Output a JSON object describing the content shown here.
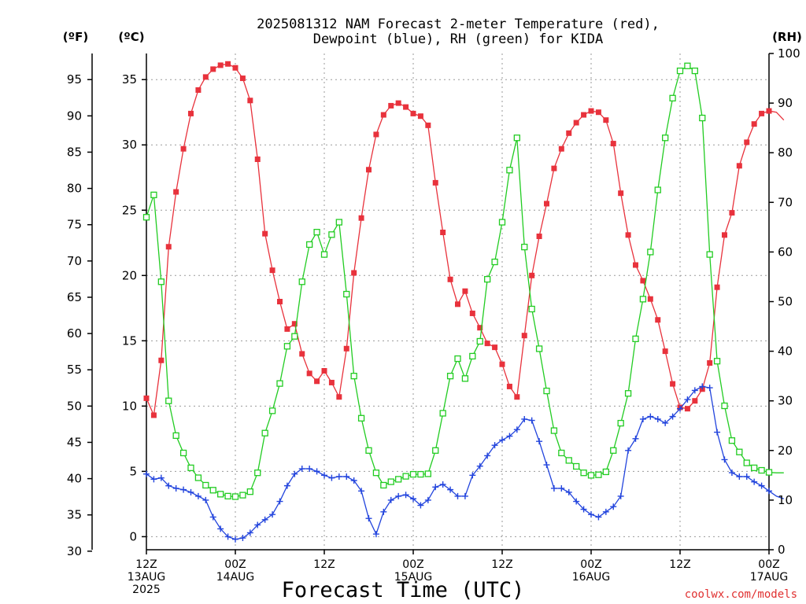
{
  "chart_data": {
    "type": "line",
    "title": "2025081312 NAM Forecast 2-meter Temperature (red),",
    "subtitle": "Dewpoint (blue), RH (green) for KIDA",
    "xlabel": "Forecast Time (UTC)",
    "y_left_outer_unit": "(ºF)",
    "y_left_inner_unit": "(ºC)",
    "y_right_unit": "(RH)",
    "credit": "coolwx.com/models",
    "x_hours_range": [
      0,
      84
    ],
    "y_c_range": [
      -1,
      37
    ],
    "y_f_ticks": [
      30,
      35,
      40,
      45,
      50,
      55,
      60,
      65,
      70,
      75,
      80,
      85,
      90,
      95
    ],
    "y_c_ticks": [
      0,
      5,
      10,
      15,
      20,
      25,
      30,
      35
    ],
    "y_rh_range": [
      0,
      100
    ],
    "y_rh_ticks": [
      0,
      10,
      20,
      30,
      40,
      50,
      60,
      70,
      80,
      90,
      100
    ],
    "x_ticks": [
      {
        "hour": 0,
        "lines": [
          "12Z",
          "13AUG",
          "2025"
        ]
      },
      {
        "hour": 12,
        "lines": [
          "00Z",
          "14AUG"
        ]
      },
      {
        "hour": 24,
        "lines": [
          "12Z"
        ]
      },
      {
        "hour": 36,
        "lines": [
          "00Z",
          "15AUG"
        ]
      },
      {
        "hour": 48,
        "lines": [
          "12Z"
        ]
      },
      {
        "hour": 60,
        "lines": [
          "00Z",
          "16AUG"
        ]
      },
      {
        "hour": 72,
        "lines": [
          "12Z"
        ]
      },
      {
        "hour": 84,
        "lines": [
          "00Z",
          "17AUG"
        ]
      }
    ],
    "grid": true,
    "series": [
      {
        "name": "Temperature",
        "unit": "C",
        "color": "#e8323c",
        "marker": "filled-square",
        "points": [
          [
            0,
            10.6
          ],
          [
            1,
            9.3
          ],
          [
            2,
            13.5
          ],
          [
            3,
            22.2
          ],
          [
            4,
            26.4
          ],
          [
            5,
            29.7
          ],
          [
            6,
            32.4
          ],
          [
            7,
            34.2
          ],
          [
            8,
            35.2
          ],
          [
            9,
            35.8
          ],
          [
            10,
            36.1
          ],
          [
            11,
            36.2
          ],
          [
            12,
            35.9
          ],
          [
            13,
            35.1
          ],
          [
            14,
            33.4
          ],
          [
            15,
            28.9
          ],
          [
            16,
            23.2
          ],
          [
            17,
            20.4
          ],
          [
            18,
            18.0
          ],
          [
            19,
            15.9
          ],
          [
            20,
            16.3
          ],
          [
            21,
            14.0
          ],
          [
            22,
            12.5
          ],
          [
            23,
            11.9
          ],
          [
            24,
            12.7
          ],
          [
            25,
            11.8
          ],
          [
            26,
            10.7
          ],
          [
            27,
            14.4
          ],
          [
            28,
            20.2
          ],
          [
            29,
            24.4
          ],
          [
            30,
            28.1
          ],
          [
            31,
            30.8
          ],
          [
            32,
            32.3
          ],
          [
            33,
            33.0
          ],
          [
            34,
            33.2
          ],
          [
            35,
            32.9
          ],
          [
            36,
            32.4
          ],
          [
            37,
            32.2
          ],
          [
            38,
            31.5
          ],
          [
            39,
            27.1
          ],
          [
            40,
            23.3
          ],
          [
            41,
            19.7
          ],
          [
            42,
            17.8
          ],
          [
            43,
            18.8
          ],
          [
            44,
            17.1
          ],
          [
            45,
            16.0
          ],
          [
            46,
            14.8
          ],
          [
            47,
            14.5
          ],
          [
            48,
            13.2
          ],
          [
            49,
            11.5
          ],
          [
            50,
            10.7
          ],
          [
            51,
            15.4
          ],
          [
            52,
            20.0
          ],
          [
            53,
            23.0
          ],
          [
            54,
            25.5
          ],
          [
            55,
            28.2
          ],
          [
            56,
            29.7
          ],
          [
            57,
            30.9
          ],
          [
            58,
            31.7
          ],
          [
            59,
            32.3
          ],
          [
            60,
            32.6
          ],
          [
            61,
            32.5
          ],
          [
            62,
            31.9
          ],
          [
            63,
            30.1
          ],
          [
            64,
            26.3
          ],
          [
            65,
            23.1
          ],
          [
            66,
            20.8
          ],
          [
            67,
            19.6
          ],
          [
            68,
            18.2
          ],
          [
            69,
            16.6
          ],
          [
            70,
            14.2
          ],
          [
            71,
            11.7
          ],
          [
            72,
            9.9
          ],
          [
            73,
            9.8
          ],
          [
            74,
            10.4
          ],
          [
            75,
            11.3
          ],
          [
            76,
            13.3
          ],
          [
            77,
            19.1
          ],
          [
            78,
            23.1
          ],
          [
            79,
            24.8
          ],
          [
            80,
            28.4
          ],
          [
            81,
            30.2
          ],
          [
            82,
            31.6
          ],
          [
            83,
            32.4
          ],
          [
            84,
            32.6
          ],
          [
            85,
            32.5
          ],
          [
            86,
            31.9
          ]
        ]
      },
      {
        "name": "Dewpoint",
        "unit": "C",
        "color": "#2244dd",
        "marker": "plus",
        "points": [
          [
            0,
            4.8
          ],
          [
            1,
            4.4
          ],
          [
            2,
            4.5
          ],
          [
            3,
            3.9
          ],
          [
            4,
            3.7
          ],
          [
            5,
            3.6
          ],
          [
            6,
            3.4
          ],
          [
            7,
            3.1
          ],
          [
            8,
            2.8
          ],
          [
            9,
            1.5
          ],
          [
            10,
            0.6
          ],
          [
            11,
            0
          ],
          [
            12,
            -0.2
          ],
          [
            13,
            -0.1
          ],
          [
            14,
            0.3
          ],
          [
            15,
            0.9
          ],
          [
            16,
            1.3
          ],
          [
            17,
            1.7
          ],
          [
            18,
            2.7
          ],
          [
            19,
            3.9
          ],
          [
            20,
            4.8
          ],
          [
            21,
            5.2
          ],
          [
            22,
            5.2
          ],
          [
            23,
            5.0
          ],
          [
            24,
            4.7
          ],
          [
            25,
            4.5
          ],
          [
            26,
            4.6
          ],
          [
            27,
            4.6
          ],
          [
            28,
            4.3
          ],
          [
            29,
            3.5
          ],
          [
            30,
            1.4
          ],
          [
            31,
            0.2
          ],
          [
            32,
            1.9
          ],
          [
            33,
            2.8
          ],
          [
            34,
            3.1
          ],
          [
            35,
            3.2
          ],
          [
            36,
            2.9
          ],
          [
            37,
            2.4
          ],
          [
            38,
            2.8
          ],
          [
            39,
            3.8
          ],
          [
            40,
            4.0
          ],
          [
            41,
            3.6
          ],
          [
            42,
            3.1
          ],
          [
            43,
            3.1
          ],
          [
            44,
            4.7
          ],
          [
            45,
            5.4
          ],
          [
            46,
            6.2
          ],
          [
            47,
            7.0
          ],
          [
            48,
            7.4
          ],
          [
            49,
            7.7
          ],
          [
            50,
            8.2
          ],
          [
            51,
            9.0
          ],
          [
            52,
            8.9
          ],
          [
            53,
            7.3
          ],
          [
            54,
            5.5
          ],
          [
            55,
            3.7
          ],
          [
            56,
            3.7
          ],
          [
            57,
            3.4
          ],
          [
            58,
            2.7
          ],
          [
            59,
            2.1
          ],
          [
            60,
            1.7
          ],
          [
            61,
            1.5
          ],
          [
            62,
            1.9
          ],
          [
            63,
            2.3
          ],
          [
            64,
            3.1
          ],
          [
            65,
            6.6
          ],
          [
            66,
            7.5
          ],
          [
            67,
            9.0
          ],
          [
            68,
            9.2
          ],
          [
            69,
            9.0
          ],
          [
            70,
            8.7
          ],
          [
            71,
            9.2
          ],
          [
            72,
            9.8
          ],
          [
            73,
            10.5
          ],
          [
            74,
            11.2
          ],
          [
            75,
            11.5
          ],
          [
            76,
            11.4
          ],
          [
            77,
            8.0
          ],
          [
            78,
            5.9
          ],
          [
            79,
            4.9
          ],
          [
            80,
            4.6
          ],
          [
            81,
            4.6
          ],
          [
            82,
            4.2
          ],
          [
            83,
            3.9
          ],
          [
            84,
            3.5
          ],
          [
            85,
            3.1
          ],
          [
            86,
            2.9
          ]
        ]
      },
      {
        "name": "RH",
        "unit": "%",
        "color": "#22cc22",
        "marker": "open-square",
        "points": [
          [
            0,
            67
          ],
          [
            1,
            71.5
          ],
          [
            2,
            54
          ],
          [
            3,
            30
          ],
          [
            4,
            23
          ],
          [
            5,
            19.5
          ],
          [
            6,
            16.5
          ],
          [
            7,
            14.5
          ],
          [
            8,
            13
          ],
          [
            9,
            12
          ],
          [
            10,
            11.2
          ],
          [
            11,
            10.8
          ],
          [
            12,
            10.7
          ],
          [
            13,
            11
          ],
          [
            14,
            11.7
          ],
          [
            15,
            15.5
          ],
          [
            16,
            23.5
          ],
          [
            17,
            28
          ],
          [
            18,
            33.5
          ],
          [
            19,
            41
          ],
          [
            20,
            43
          ],
          [
            21,
            54
          ],
          [
            22,
            61.5
          ],
          [
            23,
            64
          ],
          [
            24,
            59.5
          ],
          [
            25,
            63.5
          ],
          [
            26,
            66
          ],
          [
            27,
            51.5
          ],
          [
            28,
            35
          ],
          [
            29,
            26.5
          ],
          [
            30,
            20
          ],
          [
            31,
            15.5
          ],
          [
            32,
            13
          ],
          [
            33,
            13.7
          ],
          [
            34,
            14.2
          ],
          [
            35,
            14.8
          ],
          [
            36,
            15.2
          ],
          [
            37,
            15.2
          ],
          [
            38,
            15.3
          ],
          [
            39,
            20
          ],
          [
            40,
            27.5
          ],
          [
            41,
            35
          ],
          [
            42,
            38.5
          ],
          [
            43,
            34.5
          ],
          [
            44,
            39
          ],
          [
            45,
            42
          ],
          [
            46,
            54.5
          ],
          [
            47,
            58
          ],
          [
            48,
            66
          ],
          [
            49,
            76.5
          ],
          [
            50,
            83
          ],
          [
            51,
            61
          ],
          [
            52,
            48.5
          ],
          [
            53,
            40.5
          ],
          [
            54,
            32
          ],
          [
            55,
            24
          ],
          [
            56,
            19.5
          ],
          [
            57,
            18
          ],
          [
            58,
            16.8
          ],
          [
            59,
            15.5
          ],
          [
            60,
            15
          ],
          [
            61,
            15.1
          ],
          [
            62,
            15.7
          ],
          [
            63,
            20
          ],
          [
            64,
            25.5
          ],
          [
            65,
            31.5
          ],
          [
            66,
            42.5
          ],
          [
            67,
            50.5
          ],
          [
            68,
            60
          ],
          [
            69,
            72.5
          ],
          [
            70,
            83
          ],
          [
            71,
            91
          ],
          [
            72,
            96.5
          ],
          [
            73,
            97.5
          ],
          [
            74,
            96.5
          ],
          [
            75,
            87
          ],
          [
            76,
            59.5
          ],
          [
            77,
            38
          ],
          [
            78,
            29
          ],
          [
            79,
            22
          ],
          [
            80,
            19.7
          ],
          [
            81,
            17.5
          ],
          [
            82,
            16.5
          ],
          [
            83,
            16
          ],
          [
            84,
            15.6
          ],
          [
            85,
            15.5
          ],
          [
            86,
            15.5
          ]
        ]
      }
    ]
  }
}
